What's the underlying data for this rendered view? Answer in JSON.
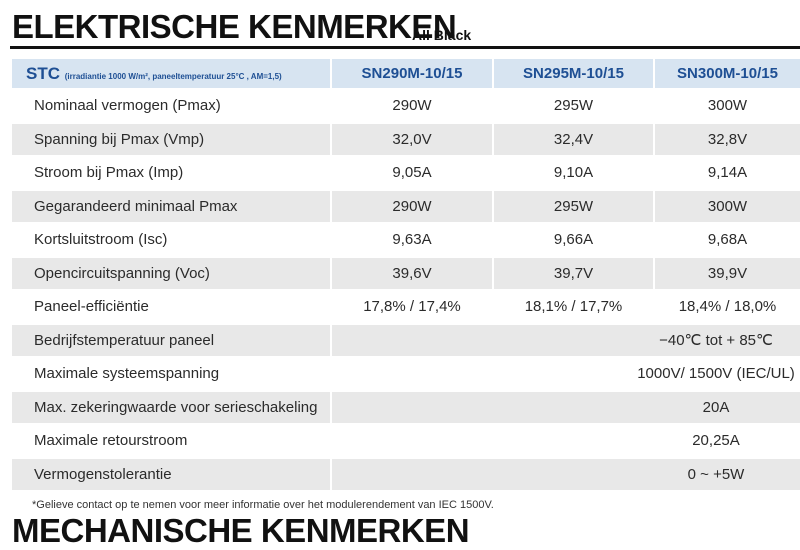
{
  "header": {
    "title": "ELEKTRISCHE KENMERKEN",
    "subtitle": "All Black"
  },
  "table": {
    "stc": "STC",
    "stc_note": "(irradiantie 1000 W/m², paneeltemperatuur 25°C , AM=1,5)",
    "columns": [
      "SN290M-10/15",
      "SN295M-10/15",
      "SN300M-10/15"
    ],
    "rows": [
      [
        "Nominaal vermogen (Pmax)",
        "290W",
        "295W",
        "300W"
      ],
      [
        "Spanning bij Pmax (Vmp)",
        "32,0V",
        "32,4V",
        "32,8V"
      ],
      [
        "Stroom bij Pmax (Imp)",
        "9,05A",
        "9,10A",
        "9,14A"
      ],
      [
        "Gegarandeerd minimaal Pmax",
        "290W",
        "295W",
        "300W"
      ],
      [
        "Kortsluitstroom (Isc)",
        "9,63A",
        "9,66A",
        "9,68A"
      ],
      [
        "Opencircuitspanning (Voc)",
        "39,6V",
        "39,7V",
        "39,9V"
      ],
      [
        "Paneel-efficiëntie",
        "17,8% / 17,4%",
        "18,1% / 17,7%",
        "18,4% / 18,0%"
      ],
      [
        "Bedrijfstemperatuur paneel",
        "−40℃ tot + 85℃"
      ],
      [
        "Maximale systeemspanning",
        "1000V/ 1500V (IEC/UL)"
      ],
      [
        "Max. zekeringwaarde voor serieschakeling",
        "20A"
      ],
      [
        "Maximale retourstroom",
        "20,25A"
      ],
      [
        "Vermogenstolerantie",
        "0 ~ +5W"
      ]
    ]
  },
  "footnote": "*Gelieve contact op te nemen voor meer informatie over het modulerendement van IEC 1500V.",
  "next_section": "MECHANISCHE KENMERKEN"
}
